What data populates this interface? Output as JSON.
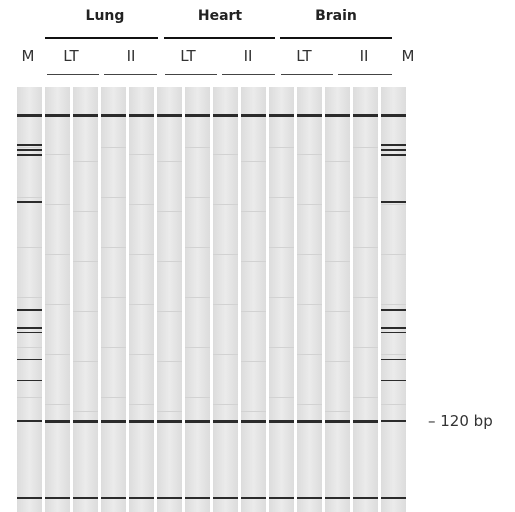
{
  "groups": [
    {
      "label": "Lung"
    },
    {
      "label": "Heart"
    },
    {
      "label": "Brain"
    }
  ],
  "lanes": {
    "marker_left": "M",
    "marker_right": "M",
    "sub": [
      "LT",
      "II",
      "LT",
      "II",
      "LT",
      "II"
    ]
  },
  "size_marker": {
    "label": "– 120 bp"
  },
  "colors": {
    "gel": "#e4e4e4",
    "band": "#2b2b2b",
    "gap": "#ffffff"
  }
}
